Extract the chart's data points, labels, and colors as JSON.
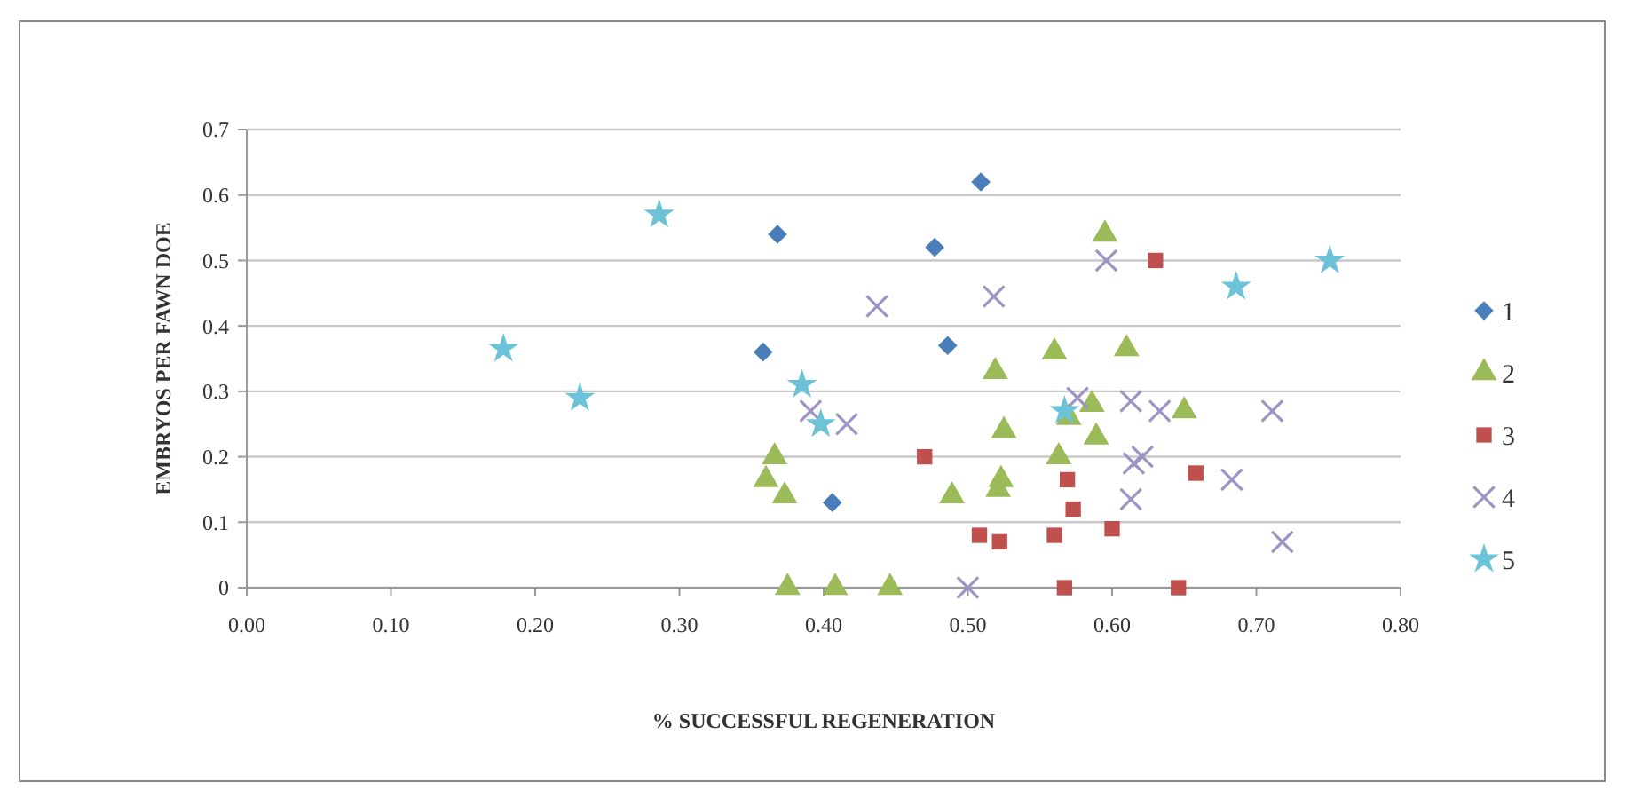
{
  "chart_data": {
    "type": "scatter",
    "xlabel": "% SUCCESSFUL REGENERATION",
    "ylabel": "EMBRYOS PER FAWN DOE",
    "xlim": [
      0,
      0.8
    ],
    "xticks": [
      {
        "value": 0,
        "label": "0.00"
      },
      {
        "value": 0.1,
        "label": "0.10"
      },
      {
        "value": 0.2,
        "label": "0.20"
      },
      {
        "value": 0.3,
        "label": "0.30"
      },
      {
        "value": 0.4,
        "label": "0.40"
      },
      {
        "value": 0.5,
        "label": "0.50"
      },
      {
        "value": 0.6,
        "label": "0.60"
      },
      {
        "value": 0.7,
        "label": "0.70"
      },
      {
        "value": 0.8,
        "label": "0.80"
      }
    ],
    "ylim": [
      0,
      0.7
    ],
    "yticks": [
      0,
      0.1,
      0.2,
      0.3,
      0.4,
      0.5,
      0.6,
      0.7
    ],
    "grid": "y",
    "legend": "right",
    "series": [
      {
        "name": "1",
        "color": "#4a7ebb",
        "marker": "diamond",
        "x": [
          0.509,
          0.368,
          0.477,
          0.358,
          0.486,
          0.406
        ],
        "values": [
          0.62,
          0.54,
          0.52,
          0.36,
          0.37,
          0.13
        ]
      },
      {
        "name": "2",
        "color": "#9bbb59",
        "marker": "triangle",
        "x": [
          0.366,
          0.36,
          0.373,
          0.375,
          0.408,
          0.446,
          0.489,
          0.519,
          0.525,
          0.523,
          0.521,
          0.56,
          0.563,
          0.57,
          0.595,
          0.61,
          0.586,
          0.589,
          0.65
        ],
        "values": [
          0.2,
          0.165,
          0.14,
          0,
          0,
          0,
          0.14,
          0.33,
          0.24,
          0.165,
          0.15,
          0.36,
          0.2,
          0.26,
          0.54,
          0.365,
          0.28,
          0.23,
          0.27
        ]
      },
      {
        "name": "3",
        "color": "#c0504d",
        "marker": "square",
        "x": [
          0.47,
          0.508,
          0.522,
          0.56,
          0.567,
          0.569,
          0.573,
          0.6,
          0.63,
          0.658,
          0.646
        ],
        "values": [
          0.2,
          0.08,
          0.07,
          0.08,
          0,
          0.165,
          0.12,
          0.09,
          0.5,
          0.175,
          0
        ]
      },
      {
        "name": "4",
        "color": "#9d93c4",
        "marker": "cross",
        "x": [
          0.437,
          0.518,
          0.391,
          0.416,
          0.5,
          0.596,
          0.576,
          0.613,
          0.633,
          0.711,
          0.621,
          0.615,
          0.613,
          0.683,
          0.718
        ],
        "values": [
          0.43,
          0.445,
          0.27,
          0.25,
          0,
          0.5,
          0.29,
          0.285,
          0.27,
          0.27,
          0.2,
          0.19,
          0.135,
          0.165,
          0.07
        ]
      },
      {
        "name": "5",
        "color": "#6cc3d8",
        "marker": "star",
        "x": [
          0.286,
          0.178,
          0.231,
          0.385,
          0.398,
          0.567,
          0.686,
          0.751
        ],
        "values": [
          0.57,
          0.365,
          0.29,
          0.31,
          0.25,
          0.27,
          0.46,
          0.5
        ]
      }
    ]
  }
}
